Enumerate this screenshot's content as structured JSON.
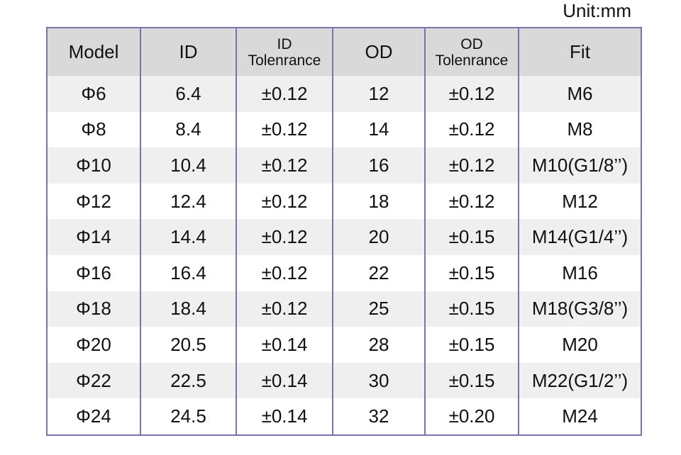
{
  "unit": "Unit:mm",
  "table": {
    "header": [
      [
        "Model"
      ],
      [
        "ID"
      ],
      [
        "ID",
        "Tolenrance"
      ],
      [
        "OD"
      ],
      [
        "OD",
        "Tolenrance"
      ],
      [
        "Fit"
      ]
    ],
    "rows": [
      [
        "Φ6",
        "6.4",
        "±0.12",
        "12",
        "±0.12",
        "M6"
      ],
      [
        "Φ8",
        "8.4",
        "±0.12",
        "14",
        "±0.12",
        "M8"
      ],
      [
        "Φ10",
        "10.4",
        "±0.12",
        "16",
        "±0.12",
        "M10(G1/8’’)"
      ],
      [
        "Φ12",
        "12.4",
        "±0.12",
        "18",
        "±0.12",
        "M12"
      ],
      [
        "Φ14",
        "14.4",
        "±0.12",
        "20",
        "±0.15",
        "M14(G1/4’’)"
      ],
      [
        "Φ16",
        "16.4",
        "±0.12",
        "22",
        "±0.15",
        "M16"
      ],
      [
        "Φ18",
        "18.4",
        "±0.12",
        "25",
        "±0.15",
        "M18(G3/8’’)"
      ],
      [
        "Φ20",
        "20.5",
        "±0.14",
        "28",
        "±0.15",
        "M20"
      ],
      [
        "Φ22",
        "22.5",
        "±0.14",
        "30",
        "±0.15",
        "M22(G1/2’’)"
      ],
      [
        "Φ24",
        "24.5",
        "±0.14",
        "32",
        "±0.20",
        "M24"
      ]
    ]
  }
}
